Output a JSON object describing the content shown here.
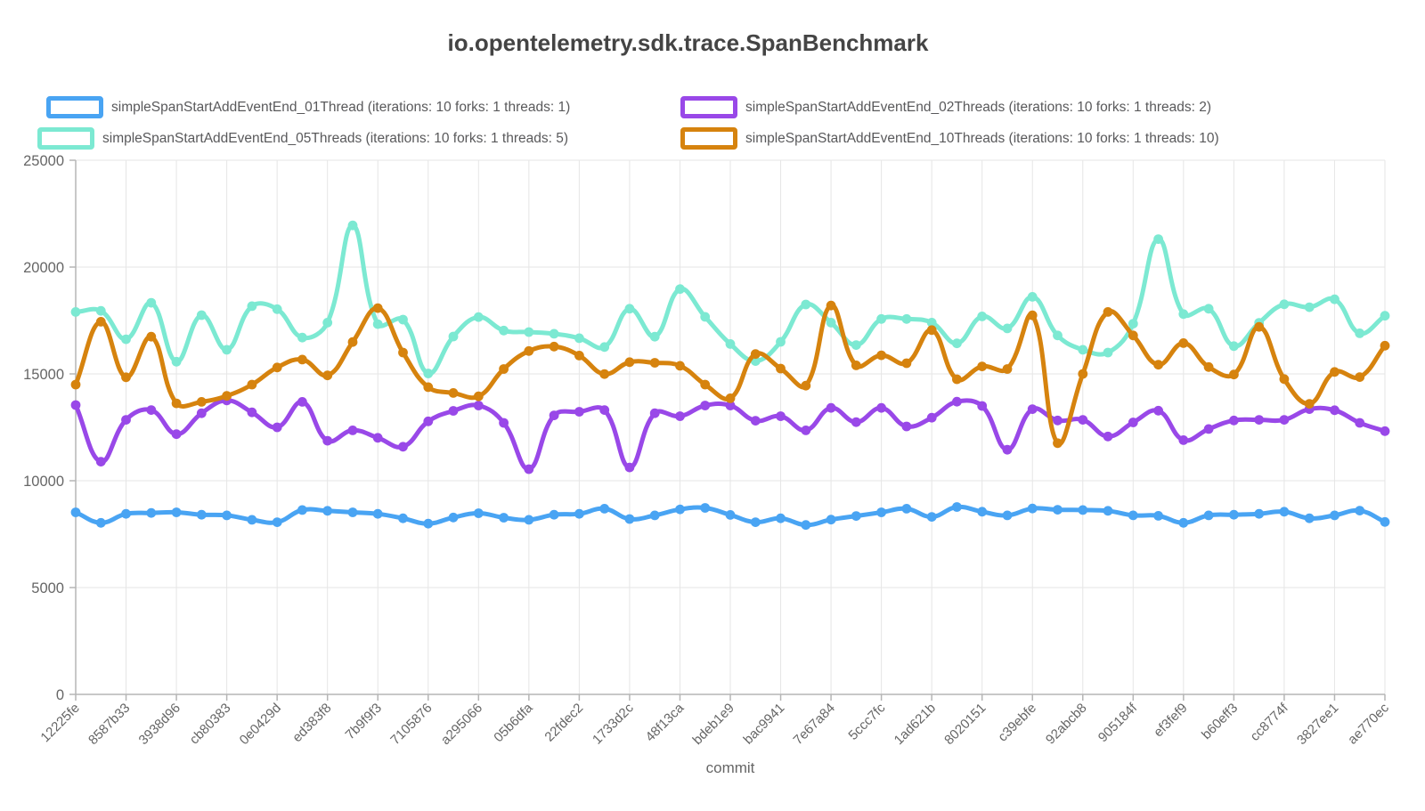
{
  "title": "io.opentelemetry.sdk.trace.SpanBenchmark",
  "y_axis": {
    "tick_labels": [
      "0",
      "5000",
      "10000",
      "15000",
      "20000",
      "25000"
    ],
    "min": 0,
    "max": 25000,
    "step": 5000
  },
  "x_axis": {
    "title": "commit"
  },
  "chart_data": {
    "type": "line",
    "title": "io.opentelemetry.sdk.trace.SpanBenchmark",
    "xlabel": "commit",
    "ylabel": "",
    "ylim": [
      0,
      25000
    ],
    "grid": true,
    "legend_position": "top",
    "x_tick_labels": [
      "12225fe",
      "8587b33",
      "3938d96",
      "cb80383",
      "0e0429d",
      "ed383f8",
      "7b9f9f3",
      "7105876",
      "a295066",
      "05b6dfa",
      "22fdec2",
      "1733d2c",
      "48f13ca",
      "bdeb1e9",
      "bac9941",
      "7e67a84",
      "5ccc7fc",
      "1ad621b",
      "8020151",
      "c39ebfe",
      "92abcb8",
      "905184f",
      "ef3fef9",
      "b60eff3",
      "cc8774f",
      "3827ee1",
      "ae770ec"
    ],
    "points_per_label_interval": 2,
    "points_count": 53,
    "series": [
      {
        "id": "01Thread",
        "name": "simpleSpanStartAddEventEnd_01Thread (iterations: 10 forks: 1 threads: 1)",
        "color": "#49a4f3",
        "values": [
          8520,
          8030,
          8450,
          8490,
          8520,
          8410,
          8380,
          8170,
          8060,
          8630,
          8590,
          8520,
          8450,
          8240,
          7990,
          8280,
          8480,
          8270,
          8170,
          8410,
          8450,
          8690,
          8210,
          8380,
          8660,
          8730,
          8400,
          8060,
          8240,
          7930,
          8180,
          8350,
          8520,
          8690,
          8310,
          8770,
          8550,
          8380,
          8700,
          8640,
          8630,
          8590,
          8380,
          8360,
          8030,
          8380,
          8410,
          8450,
          8550,
          8240,
          8380,
          8600,
          8070
        ]
      },
      {
        "id": "02Threads",
        "name": "simpleSpanStartAddEventEnd_02Threads (iterations: 10 forks: 1 threads: 2)",
        "color": "#9948e8",
        "values": [
          13540,
          10890,
          12850,
          13310,
          12180,
          13160,
          13760,
          13200,
          12500,
          13690,
          11870,
          12360,
          12010,
          11590,
          12780,
          13270,
          13520,
          12710,
          10540,
          13060,
          13230,
          13310,
          10620,
          13160,
          13020,
          13520,
          13520,
          12810,
          13020,
          12360,
          13410,
          12740,
          13410,
          12540,
          12950,
          13700,
          13500,
          11450,
          13350,
          12820,
          12850,
          12070,
          12730,
          13280,
          11900,
          12420,
          12820,
          12850,
          12850,
          13350,
          13300,
          12710,
          12320
        ]
      },
      {
        "id": "05Threads",
        "name": "simpleSpanStartAddEventEnd_05Threads (iterations: 10 forks: 1 threads: 5)",
        "color": "#7ce9d2",
        "values": [
          17900,
          17950,
          16620,
          18330,
          15570,
          17750,
          16130,
          18170,
          18030,
          16700,
          17400,
          21950,
          17330,
          17540,
          15020,
          16750,
          17660,
          17030,
          16960,
          16880,
          16670,
          16260,
          18050,
          16740,
          18970,
          17670,
          16400,
          15600,
          16500,
          18250,
          17400,
          16350,
          17570,
          17570,
          17400,
          16430,
          17690,
          17130,
          18610,
          16800,
          16130,
          16000,
          17350,
          21310,
          17800,
          18050,
          16300,
          17390,
          18260,
          18120,
          18490,
          16900,
          17720
        ]
      },
      {
        "id": "10Threads",
        "name": "simpleSpanStartAddEventEnd_10Threads (iterations: 10 forks: 1 threads: 10)",
        "color": "#d6830e",
        "values": [
          14500,
          17440,
          14840,
          16740,
          13620,
          13690,
          13970,
          14500,
          15300,
          15670,
          14930,
          16490,
          18080,
          16000,
          14380,
          14110,
          13950,
          15230,
          16070,
          16280,
          15860,
          14990,
          15550,
          15520,
          15380,
          14500,
          13860,
          15930,
          15250,
          14450,
          18200,
          15400,
          15870,
          15500,
          17050,
          14750,
          15350,
          15230,
          17740,
          11760,
          15000,
          17900,
          16800,
          15430,
          16440,
          15320,
          14970,
          17200,
          14760,
          13600,
          15090,
          14850,
          16320
        ]
      }
    ]
  },
  "colors": {
    "grid": "#e6e6e6",
    "axis": "#b5b5b5",
    "tick_text": "#666666",
    "title_text": "#444444",
    "legend_text": "#59595b",
    "background": "#ffffff"
  }
}
